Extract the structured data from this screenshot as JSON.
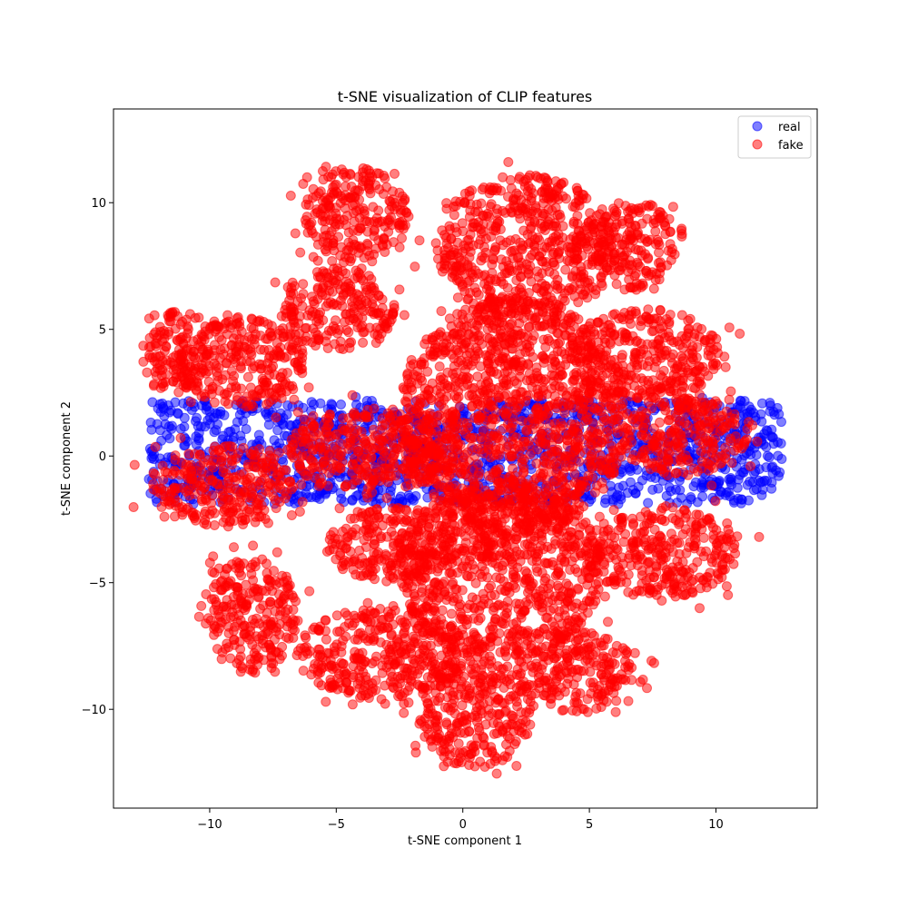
{
  "chart_data": {
    "type": "scatter",
    "title": "t-SNE visualization of CLIP features",
    "xlabel": "t-SNE component 1",
    "ylabel": "t-SNE component 2",
    "xlim": [
      -13.8,
      14.0
    ],
    "ylim": [
      -13.9,
      13.7
    ],
    "xticks": [
      -10,
      -5,
      0,
      5,
      10
    ],
    "yticks": [
      -10,
      -5,
      0,
      5,
      10
    ],
    "grid": false,
    "legend_position": "top-right",
    "series": [
      {
        "name": "real",
        "color": "#0000ff",
        "regions": [
          {
            "type": "band",
            "x": [
              -12.4,
              12.6
            ],
            "y": [
              -1.9,
              2.2
            ]
          }
        ]
      },
      {
        "name": "fake",
        "color": "#ff0000",
        "regions": [
          {
            "type": "ellipse",
            "cx": -8.8,
            "cy": 3.7,
            "rx": 2.6,
            "ry": 1.8
          },
          {
            "type": "ellipse",
            "cx": -11.2,
            "cy": 4.2,
            "rx": 1.2,
            "ry": 1.6
          },
          {
            "type": "ellipse",
            "cx": -9.5,
            "cy": -1.2,
            "rx": 2.9,
            "ry": 1.6
          },
          {
            "type": "ellipse",
            "cx": -8.3,
            "cy": -6.3,
            "rx": 1.8,
            "ry": 2.3
          },
          {
            "type": "ellipse",
            "cx": -4.2,
            "cy": 9.5,
            "rx": 2.1,
            "ry": 1.9
          },
          {
            "type": "ellipse",
            "cx": -5.0,
            "cy": 5.8,
            "rx": 2.3,
            "ry": 1.6
          },
          {
            "type": "ellipse",
            "cx": -3.5,
            "cy": 0.2,
            "rx": 3.4,
            "ry": 1.7
          },
          {
            "type": "ellipse",
            "cx": -2.8,
            "cy": -3.5,
            "rx": 2.6,
            "ry": 1.5
          },
          {
            "type": "ellipse",
            "cx": -3.2,
            "cy": -7.8,
            "rx": 3.4,
            "ry": 1.8
          },
          {
            "type": "ellipse",
            "cx": 2.5,
            "cy": 8.3,
            "rx": 3.6,
            "ry": 2.8
          },
          {
            "type": "ellipse",
            "cx": 2.0,
            "cy": 1.5,
            "rx": 4.5,
            "ry": 4.8
          },
          {
            "type": "ellipse",
            "cx": 1.5,
            "cy": -4.5,
            "rx": 4.0,
            "ry": 3.5
          },
          {
            "type": "ellipse",
            "cx": 0.5,
            "cy": -10.0,
            "rx": 2.3,
            "ry": 2.3
          },
          {
            "type": "ellipse",
            "cx": 7.2,
            "cy": 4.0,
            "rx": 3.0,
            "ry": 1.8
          },
          {
            "type": "ellipse",
            "cx": 6.8,
            "cy": 8.3,
            "rx": 1.5,
            "ry": 1.8
          },
          {
            "type": "ellipse",
            "cx": 8.8,
            "cy": 0.8,
            "rx": 2.5,
            "ry": 1.6
          },
          {
            "type": "ellipse",
            "cx": 7.8,
            "cy": -3.8,
            "rx": 3.0,
            "ry": 1.8
          },
          {
            "type": "ellipse",
            "cx": 4.5,
            "cy": -8.5,
            "rx": 2.3,
            "ry": 1.6
          }
        ]
      }
    ]
  }
}
